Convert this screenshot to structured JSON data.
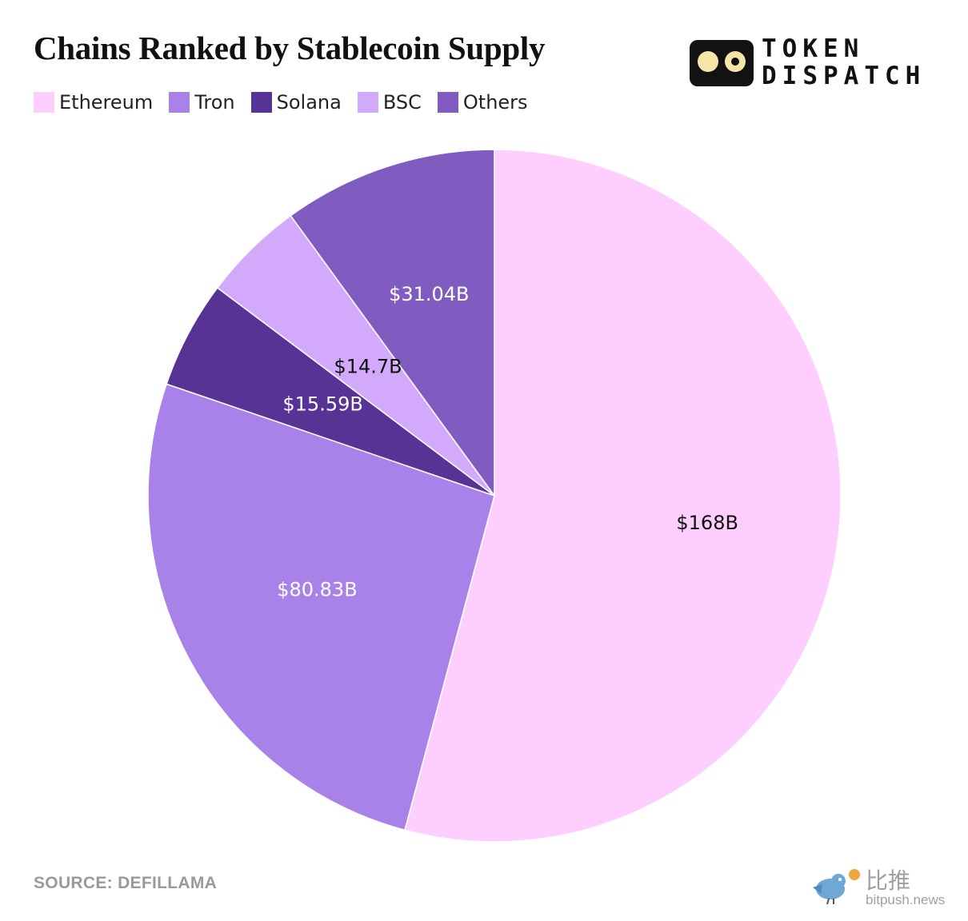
{
  "header": {
    "title": "Chains Ranked by Stablecoin Supply"
  },
  "logo": {
    "line1": "TOKEN",
    "line2": "DISPATCH"
  },
  "chart_data": {
    "type": "pie",
    "title": "Chains Ranked by Stablecoin Supply",
    "legend_position": "top-left",
    "categories": [
      "Ethereum",
      "Tron",
      "Solana",
      "BSC",
      "Others"
    ],
    "values": [
      168,
      80.83,
      15.59,
      14.7,
      31.04
    ],
    "labels": [
      "$168B",
      "$80.83B",
      "$15.59B",
      "$14.7B",
      "$31.04B"
    ],
    "colors": [
      "#fecffe",
      "#a882e8",
      "#573396",
      "#d3a9fb",
      "#815cc0"
    ],
    "label_colors": [
      "#111111",
      "#ffffff",
      "#ffffff",
      "#111111",
      "#ffffff"
    ],
    "unit": "USD billions"
  },
  "footer": {
    "source": "SOURCE: DEFILLAMA"
  },
  "watermark": {
    "cn": "比推",
    "url": "bitpush.news"
  }
}
